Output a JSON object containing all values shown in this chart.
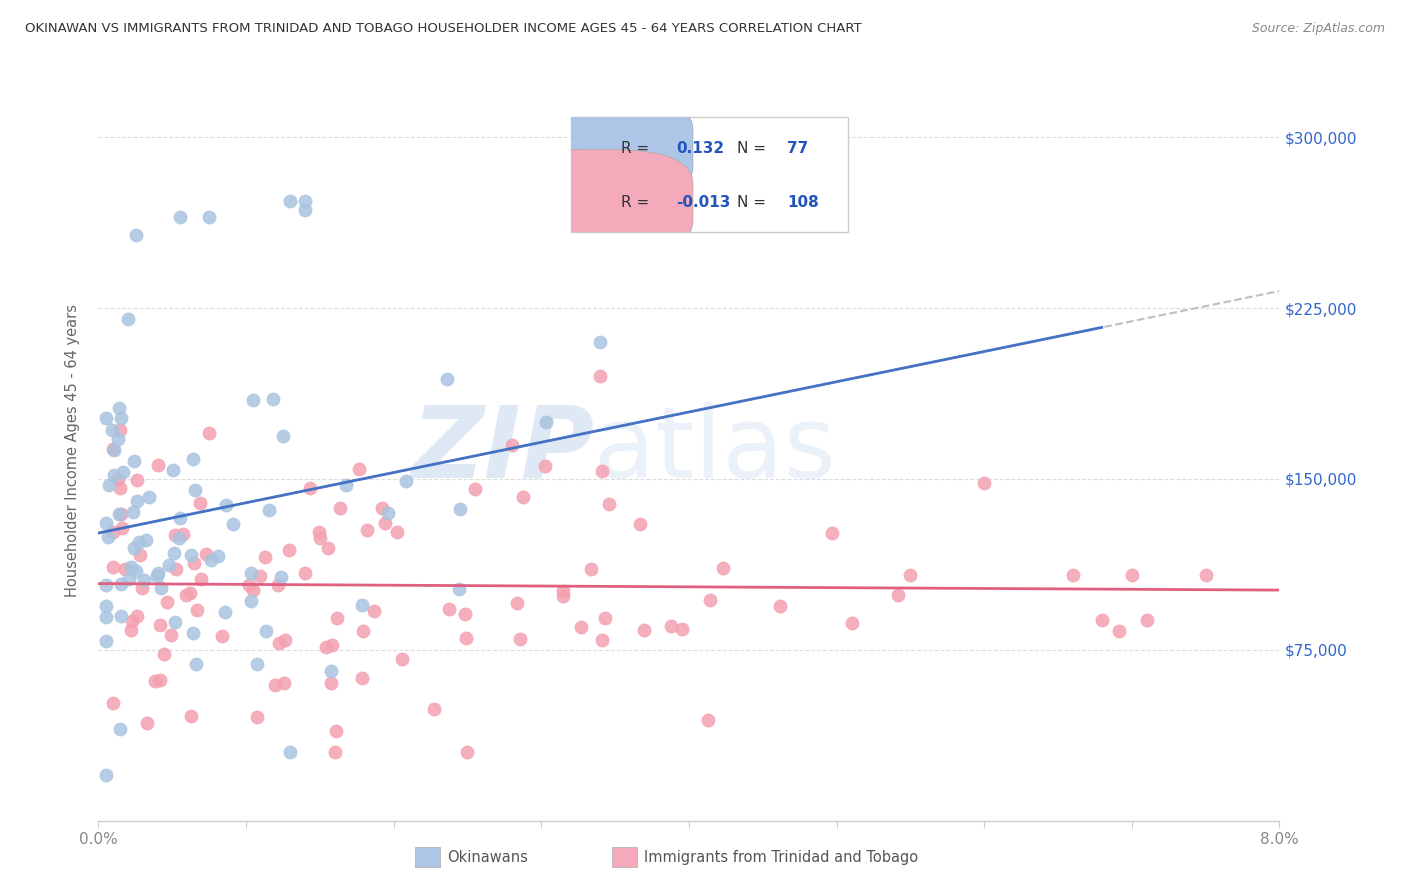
{
  "title": "OKINAWAN VS IMMIGRANTS FROM TRINIDAD AND TOBAGO HOUSEHOLDER INCOME AGES 45 - 64 YEARS CORRELATION CHART",
  "source": "Source: ZipAtlas.com",
  "ylabel": "Householder Income Ages 45 - 64 years",
  "xlim": [
    0.0,
    0.08
  ],
  "ylim": [
    0,
    325000
  ],
  "xtick_positions": [
    0.0,
    0.01,
    0.02,
    0.03,
    0.04,
    0.05,
    0.06,
    0.07,
    0.08
  ],
  "xticklabels": [
    "0.0%",
    "",
    "",
    "",
    "",
    "",
    "",
    "",
    "8.0%"
  ],
  "ytick_values": [
    75000,
    150000,
    225000,
    300000
  ],
  "ytick_labels": [
    "$75,000",
    "$150,000",
    "$225,000",
    "$300,000"
  ],
  "blue_R": 0.132,
  "blue_N": 77,
  "pink_R": -0.013,
  "pink_N": 108,
  "blue_scatter_color": "#a8c4e0",
  "blue_line_color": "#4472c4",
  "blue_dashed_color": "#b0b0b0",
  "pink_scatter_color": "#f4a0b0",
  "pink_line_color": "#e06080",
  "legend_blue_fill": "#adc6e8",
  "legend_pink_fill": "#f5aabb",
  "legend_border": "#cccccc",
  "legend_text_dark": "#333333",
  "legend_text_blue": "#2255bb",
  "watermark_zip_color": "#c5d8ee",
  "watermark_atlas_color": "#c5d8ee",
  "background_color": "#ffffff",
  "axis_color": "#cccccc",
  "grid_color": "#dddddd",
  "tick_label_color": "#888888",
  "ylabel_color": "#666666",
  "title_color": "#333333",
  "source_color": "#888888",
  "bottom_legend_text_color": "#555555",
  "right_ytick_color": "#3366cc"
}
